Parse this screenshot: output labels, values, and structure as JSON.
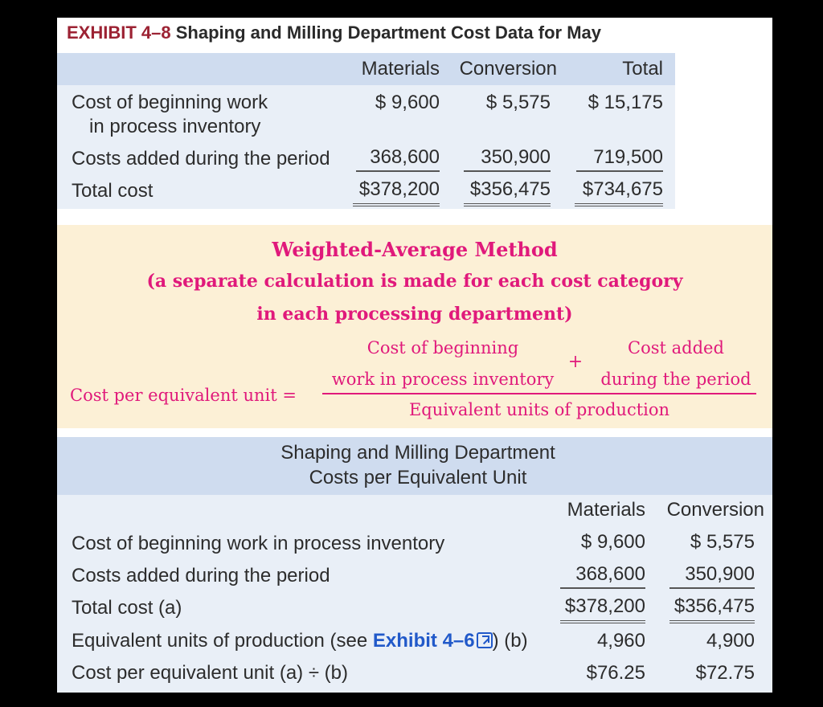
{
  "exhibit": {
    "number": "EXHIBIT 4–8",
    "title": "Shaping and Milling Department Cost Data for May"
  },
  "cost_data": {
    "headers": [
      "Materials",
      "Conversion",
      "Total"
    ],
    "rows": [
      {
        "label_line1": "Cost of beginning work",
        "label_line2": "in process inventory",
        "materials": "$  9,600",
        "conversion": "$  5,575",
        "total": "$  15,175"
      },
      {
        "label_line1": "Costs added during the period",
        "materials": "368,600",
        "conversion": "350,900",
        "total": "719,500"
      },
      {
        "label_line1": "Total cost",
        "materials": "$378,200",
        "conversion": "$356,475",
        "total": "$734,675"
      }
    ]
  },
  "formula": {
    "heading_line1": "Weighted-Average Method",
    "heading_line2": "(a separate calculation is made for each cost category",
    "heading_line3": "in each processing department)",
    "lhs": "Cost per equivalent unit =",
    "num_left_line1": "Cost of beginning",
    "num_left_line2": "work in process inventory",
    "plus": "+",
    "num_right_line1": "Cost added",
    "num_right_line2": "during the period",
    "denominator": "Equivalent units of production"
  },
  "per_unit": {
    "heading_line1": "Shaping and Milling Department",
    "heading_line2": "Costs per Equivalent Unit",
    "headers": [
      "Materials",
      "Conversion"
    ],
    "rows": [
      {
        "label": "Cost of beginning work in process inventory",
        "materials": "$  9,600",
        "conversion": "$  5,575"
      },
      {
        "label": "Costs added during the period",
        "materials": "368,600",
        "conversion": "350,900"
      },
      {
        "label": "Total cost (a)",
        "materials": "$378,200",
        "conversion": "$356,475"
      },
      {
        "label": "Equivalent units of production (see ",
        "link_text": "Exhibit 4–6",
        "label_suffix": ") (b)",
        "materials": "4,960",
        "conversion": "4,900"
      },
      {
        "label": "Cost per equivalent unit (a) ÷ (b)",
        "materials": "$76.25",
        "conversion": "$72.75"
      }
    ]
  },
  "icons": {
    "external_link": "external-link-icon"
  },
  "colors": {
    "exhibit_number": "#9c2233",
    "formula_text": "#e0197b",
    "link": "#2159c9",
    "header_band": "#cfdcef",
    "body_band": "#e9eff7",
    "formula_band": "#fcf0d6"
  }
}
